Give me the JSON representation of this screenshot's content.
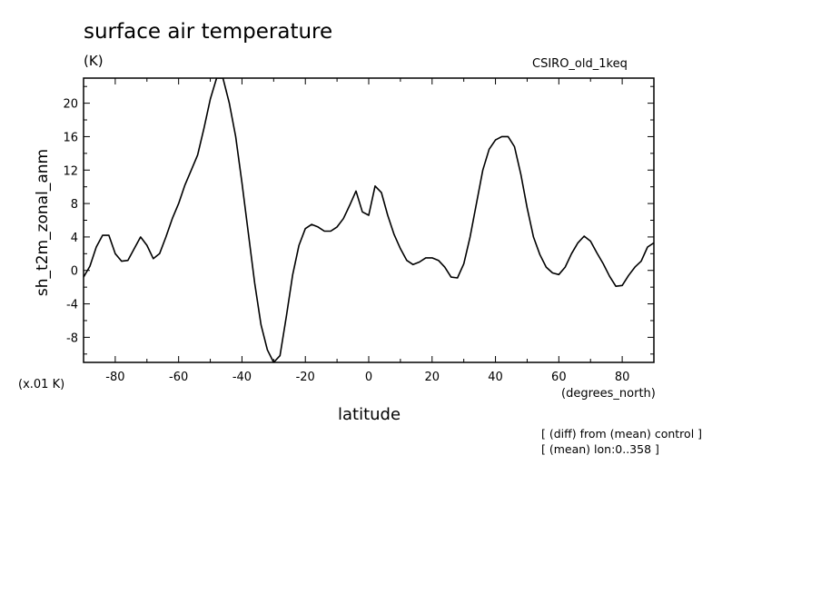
{
  "chart_data": {
    "type": "line",
    "title": "surface air temperature",
    "units_label": "(K)",
    "source_label": "CSIRO_old_1keq",
    "xlabel": "latitude",
    "x_units_label": "(degrees_north)",
    "ylabel": "sh_t2m_zonal_anm",
    "y_scale_label": "(x.01 K)",
    "notes": [
      "[ (diff) from (mean) control ]",
      "[ (mean) lon:0..358 ]"
    ],
    "xlim": [
      -90,
      90
    ],
    "ylim": [
      -11,
      23
    ],
    "x_ticks": [
      -80,
      -60,
      -40,
      -20,
      0,
      20,
      40,
      60,
      80
    ],
    "x_tick_labels": [
      "-80",
      "-60",
      "-40",
      "-20",
      "0",
      "20",
      "40",
      "60",
      "80"
    ],
    "y_ticks": [
      -8,
      -4,
      0,
      4,
      8,
      12,
      16,
      20
    ],
    "y_tick_labels": [
      "-8",
      "-4",
      "0",
      "4",
      "8",
      "12",
      "16",
      "20"
    ],
    "grid": false,
    "series": [
      {
        "x": [
          -90,
          -88,
          -86,
          -84,
          -82,
          -80,
          -78,
          -76,
          -74,
          -72,
          -70,
          -68,
          -66,
          -64,
          -62,
          -60,
          -58,
          -56,
          -54,
          -52,
          -50,
          -48,
          -46,
          -44,
          -42,
          -40,
          -38,
          -36,
          -34,
          -32,
          -30,
          -28,
          -26,
          -24,
          -22,
          -20,
          -18,
          -16,
          -14,
          -12,
          -10,
          -8,
          -6,
          -4,
          -2,
          0,
          2,
          4,
          6,
          8,
          10,
          12,
          14,
          16,
          18,
          20,
          22,
          24,
          26,
          28,
          30,
          32,
          34,
          36,
          38,
          40,
          42,
          44,
          46,
          48,
          50,
          52,
          54,
          56,
          58,
          60,
          62,
          64,
          66,
          68,
          70,
          72,
          74,
          76,
          78,
          80,
          82,
          84,
          86,
          88,
          90
        ],
        "y": [
          -0.8,
          0.5,
          2.8,
          4.2,
          4.2,
          2.0,
          1.1,
          1.2,
          2.6,
          4.0,
          3.0,
          1.4,
          2.0,
          4.0,
          6.2,
          8.0,
          10.2,
          12.0,
          13.8,
          17.0,
          20.5,
          23.0,
          23.0,
          20.0,
          16.0,
          10.5,
          4.5,
          -1.5,
          -6.5,
          -9.5,
          -11.0,
          -10.2,
          -5.5,
          -0.5,
          3.0,
          5.0,
          5.5,
          5.2,
          4.7,
          4.7,
          5.2,
          6.2,
          7.8,
          9.5,
          7.0,
          6.6,
          10.1,
          9.3,
          6.6,
          4.3,
          2.6,
          1.2,
          0.7,
          1.0,
          1.5,
          1.5,
          1.2,
          0.4,
          -0.8,
          -0.9,
          0.8,
          4.0,
          8.0,
          12.0,
          14.5,
          15.6,
          16.0,
          16.0,
          14.8,
          11.5,
          7.5,
          4.0,
          1.9,
          0.4,
          -0.3,
          -0.5,
          0.4,
          2.0,
          3.3,
          4.1,
          3.5,
          2.1,
          0.8,
          -0.7,
          -1.9,
          -1.8,
          -0.6,
          0.4,
          1.1,
          2.8,
          3.3
        ]
      }
    ]
  }
}
